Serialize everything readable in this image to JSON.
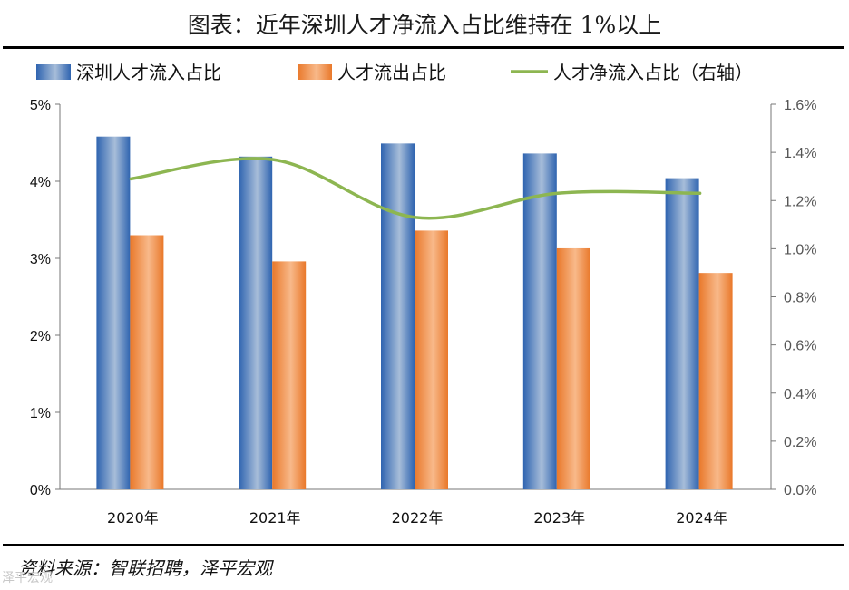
{
  "header": {
    "title": "图表：近年深圳人才净流入占比维持在 1%以上"
  },
  "footer": {
    "source": "资料来源：智联招聘，泽平宏观",
    "watermark": "泽平宏观"
  },
  "chart_data": {
    "type": "bar",
    "categories": [
      "2020年",
      "2021年",
      "2022年",
      "2023年",
      "2024年"
    ],
    "series": [
      {
        "name": "深圳人才流入占比",
        "type": "bar",
        "axis": "left",
        "values": [
          4.58,
          4.32,
          4.49,
          4.36,
          4.04
        ],
        "color": "#3d72b8"
      },
      {
        "name": "人才流出占比",
        "type": "bar",
        "axis": "left",
        "values": [
          3.3,
          2.96,
          3.36,
          3.13,
          2.81
        ],
        "color": "#ec7d31"
      },
      {
        "name": "人才净流入占比（右轴）",
        "type": "line",
        "axis": "right",
        "values": [
          1.29,
          1.37,
          1.13,
          1.23,
          1.23
        ],
        "color": "#8db651"
      }
    ],
    "left_axis": {
      "min": 0,
      "max": 5,
      "ticks": [
        "0%",
        "1%",
        "2%",
        "3%",
        "4%",
        "5%"
      ]
    },
    "right_axis": {
      "min": 0,
      "max": 1.6,
      "ticks": [
        "0.0%",
        "0.2%",
        "0.4%",
        "0.6%",
        "0.8%",
        "1.0%",
        "1.2%",
        "1.4%",
        "1.6%"
      ]
    },
    "title": "图表：近年深圳人才净流入占比维持在 1%以上",
    "legend_position": "top"
  }
}
